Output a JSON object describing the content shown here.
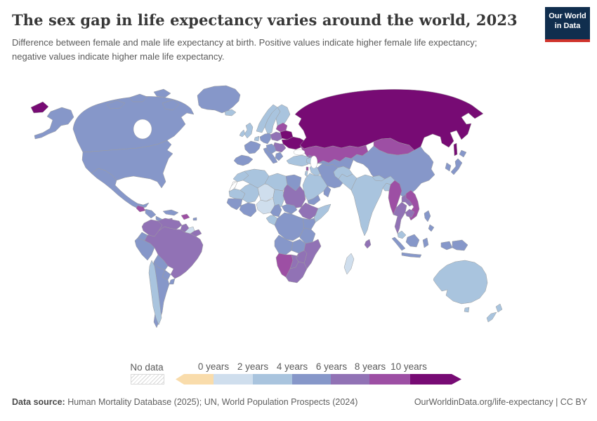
{
  "header": {
    "title": "The sex gap in life expectancy varies around the world, 2023",
    "subtitle": "Difference between female and male life expectancy at birth. Positive values indicate higher female life expectancy; negative values indicate higher male life expectancy.",
    "logo_line1": "Our World",
    "logo_line2": "in Data",
    "logo_bg": "#102e4e",
    "logo_accent": "#d0342c"
  },
  "legend": {
    "no_data_label": "No data",
    "tick_labels": [
      "0 years",
      "2 years",
      "4 years",
      "6 years",
      "8 years",
      "10 years"
    ]
  },
  "footer": {
    "source_label": "Data source:",
    "source_text": " Human Mortality Database (2025); UN, World Population Prospects (2024)",
    "link_text": "OurWorldinData.org/life-expectancy | CC BY"
  },
  "chart_data": {
    "type": "heatmap",
    "subtype": "choropleth-world-map",
    "title": "The sex gap in life expectancy varies around the world",
    "year": 2023,
    "unit": "years",
    "legend_range": [
      0,
      10
    ],
    "bins": [
      {
        "id": "neg",
        "label": "<0 years",
        "color": "#f9dcab"
      },
      {
        "id": "b0_2",
        "label": "0-2 years",
        "color": "#cfdeed"
      },
      {
        "id": "b2_4",
        "label": "2-4 years",
        "color": "#a9c4de"
      },
      {
        "id": "b4_6",
        "label": "4-6 years",
        "color": "#8697c9"
      },
      {
        "id": "b6_8",
        "label": "6-8 years",
        "color": "#9172b5"
      },
      {
        "id": "b8_10",
        "label": "8-10 years",
        "color": "#9d4fa4"
      },
      {
        "id": "b10p",
        "label": "10+ years",
        "color": "#770b74"
      },
      {
        "id": "no_data",
        "label": "No data",
        "color": "hatch"
      }
    ],
    "regions": [
      {
        "name": "Russia",
        "bin": "b10p"
      },
      {
        "name": "Ukraine",
        "bin": "b10p"
      },
      {
        "name": "Belarus",
        "bin": "b10p"
      },
      {
        "name": "Kazakhstan",
        "bin": "b8_10"
      },
      {
        "name": "Mongolia",
        "bin": "b8_10"
      },
      {
        "name": "Vietnam",
        "bin": "b8_10"
      },
      {
        "name": "Myanmar",
        "bin": "b8_10"
      },
      {
        "name": "Namibia",
        "bin": "b8_10"
      },
      {
        "name": "Lithuania",
        "bin": "b8_10"
      },
      {
        "name": "Guatemala",
        "bin": "b8_10"
      },
      {
        "name": "Haiti",
        "bin": "b8_10"
      },
      {
        "name": "Lebanon",
        "bin": "b8_10"
      },
      {
        "name": "Poland",
        "bin": "b6_8"
      },
      {
        "name": "Romania",
        "bin": "b6_8"
      },
      {
        "name": "Georgia",
        "bin": "b6_8"
      },
      {
        "name": "Colombia",
        "bin": "b6_8"
      },
      {
        "name": "Venezuela",
        "bin": "b6_8"
      },
      {
        "name": "Guyana",
        "bin": "b6_8"
      },
      {
        "name": "French Guiana",
        "bin": "b6_8"
      },
      {
        "name": "Brazil",
        "bin": "b6_8"
      },
      {
        "name": "Thailand",
        "bin": "b6_8"
      },
      {
        "name": "Laos",
        "bin": "b6_8"
      },
      {
        "name": "Cambodia",
        "bin": "b6_8"
      },
      {
        "name": "Sri Lanka",
        "bin": "b6_8"
      },
      {
        "name": "Sudan",
        "bin": "b6_8"
      },
      {
        "name": "Ethiopia",
        "bin": "b6_8"
      },
      {
        "name": "South Africa",
        "bin": "b6_8"
      },
      {
        "name": "Botswana",
        "bin": "b6_8"
      },
      {
        "name": "Zimbabwe",
        "bin": "b6_8"
      },
      {
        "name": "Mozambique",
        "bin": "b6_8"
      },
      {
        "name": "Jamaica",
        "bin": "b6_8"
      },
      {
        "name": "Canada",
        "bin": "b4_6"
      },
      {
        "name": "United States",
        "bin": "b4_6"
      },
      {
        "name": "Greenland",
        "bin": "b4_6"
      },
      {
        "name": "Mexico",
        "bin": "b4_6"
      },
      {
        "name": "Honduras",
        "bin": "b4_6"
      },
      {
        "name": "Panama",
        "bin": "b4_6"
      },
      {
        "name": "Cuba",
        "bin": "b4_6"
      },
      {
        "name": "Puerto Rico",
        "bin": "b4_6"
      },
      {
        "name": "Ecuador",
        "bin": "b4_6"
      },
      {
        "name": "Peru",
        "bin": "b4_6"
      },
      {
        "name": "Bolivia",
        "bin": "b4_6"
      },
      {
        "name": "Paraguay",
        "bin": "b4_6"
      },
      {
        "name": "Uruguay",
        "bin": "b4_6"
      },
      {
        "name": "Argentina",
        "bin": "b4_6"
      },
      {
        "name": "France",
        "bin": "b4_6"
      },
      {
        "name": "Germany",
        "bin": "b4_6"
      },
      {
        "name": "Spain",
        "bin": "b4_6"
      },
      {
        "name": "Italy",
        "bin": "b4_6"
      },
      {
        "name": "Serbia",
        "bin": "b4_6"
      },
      {
        "name": "Greece",
        "bin": "b4_6"
      },
      {
        "name": "Iran",
        "bin": "b4_6"
      },
      {
        "name": "Uzbekistan",
        "bin": "b4_6"
      },
      {
        "name": "China",
        "bin": "b4_6"
      },
      {
        "name": "Japan",
        "bin": "b4_6"
      },
      {
        "name": "South Korea",
        "bin": "b4_6"
      },
      {
        "name": "Philippines",
        "bin": "b4_6"
      },
      {
        "name": "Indonesia",
        "bin": "b4_6"
      },
      {
        "name": "Papua New Guinea",
        "bin": "b4_6"
      },
      {
        "name": "Egypt",
        "bin": "b4_6"
      },
      {
        "name": "Senegal",
        "bin": "b4_6"
      },
      {
        "name": "Ghana",
        "bin": "b4_6"
      },
      {
        "name": "Cameroon",
        "bin": "b4_6"
      },
      {
        "name": "Central African Republic",
        "bin": "b4_6"
      },
      {
        "name": "DR Congo",
        "bin": "b4_6"
      },
      {
        "name": "Kenya",
        "bin": "b4_6"
      },
      {
        "name": "Tanzania",
        "bin": "b4_6"
      },
      {
        "name": "Angola",
        "bin": "b4_6"
      },
      {
        "name": "Zambia",
        "bin": "b4_6"
      },
      {
        "name": "Yemen",
        "bin": "b4_6"
      },
      {
        "name": "Oman",
        "bin": "b4_6"
      },
      {
        "name": "United Kingdom",
        "bin": "b2_4"
      },
      {
        "name": "Ireland",
        "bin": "b2_4"
      },
      {
        "name": "Iceland",
        "bin": "b2_4"
      },
      {
        "name": "Norway",
        "bin": "b2_4"
      },
      {
        "name": "Sweden",
        "bin": "b2_4"
      },
      {
        "name": "Finland",
        "bin": "b2_4"
      },
      {
        "name": "Denmark",
        "bin": "b2_4"
      },
      {
        "name": "Netherlands",
        "bin": "b2_4"
      },
      {
        "name": "Australia",
        "bin": "b2_4"
      },
      {
        "name": "New Zealand",
        "bin": "b2_4"
      },
      {
        "name": "India",
        "bin": "b2_4"
      },
      {
        "name": "Nepal",
        "bin": "b2_4"
      },
      {
        "name": "Bangladesh",
        "bin": "b2_4"
      },
      {
        "name": "Pakistan",
        "bin": "b2_4"
      },
      {
        "name": "Afghanistan",
        "bin": "b2_4"
      },
      {
        "name": "Saudi Arabia",
        "bin": "b2_4"
      },
      {
        "name": "Iraq",
        "bin": "b2_4"
      },
      {
        "name": "Syria",
        "bin": "b2_4"
      },
      {
        "name": "Israel",
        "bin": "b2_4"
      },
      {
        "name": "Turkey",
        "bin": "b2_4"
      },
      {
        "name": "Morocco",
        "bin": "b2_4"
      },
      {
        "name": "Algeria",
        "bin": "b2_4"
      },
      {
        "name": "Libya",
        "bin": "b2_4"
      },
      {
        "name": "Mali",
        "bin": "b2_4"
      },
      {
        "name": "Chad",
        "bin": "b2_4"
      },
      {
        "name": "Mauritania",
        "bin": "b2_4"
      },
      {
        "name": "Somalia",
        "bin": "b2_4"
      },
      {
        "name": "Gabon",
        "bin": "b2_4"
      },
      {
        "name": "Malaysia",
        "bin": "b2_4"
      },
      {
        "name": "Chile",
        "bin": "b2_4"
      },
      {
        "name": "Nigeria",
        "bin": "b0_2"
      },
      {
        "name": "Niger",
        "bin": "b0_2"
      },
      {
        "name": "Suriname",
        "bin": "b0_2"
      },
      {
        "name": "Madagascar",
        "bin": "b0_2"
      },
      {
        "name": "Western Sahara",
        "bin": "no_data"
      }
    ]
  }
}
